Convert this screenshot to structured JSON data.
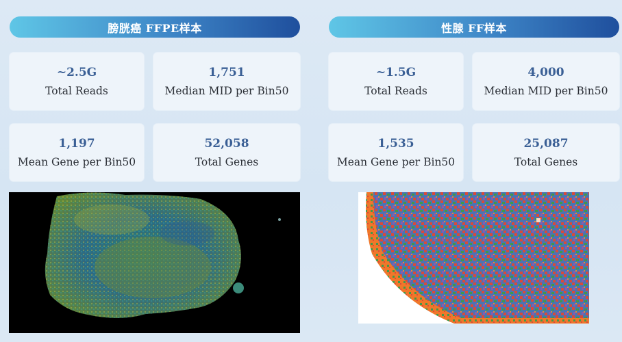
{
  "panels": [
    {
      "title": "膀胱癌 FFPE样本",
      "stats": [
        {
          "value": "~2.5G",
          "label": "Total Reads"
        },
        {
          "value": "1,751",
          "label": "Median MID per Bin50"
        },
        {
          "value": "1,197",
          "label": "Mean Gene per Bin50"
        },
        {
          "value": "52,058",
          "label": "Total Genes"
        }
      ]
    },
    {
      "title": "性腺 FF样本",
      "stats": [
        {
          "value": "~1.5G",
          "label": "Total Reads"
        },
        {
          "value": "4,000",
          "label": "Median MID per Bin50"
        },
        {
          "value": "1,535",
          "label": "Mean Gene per Bin50"
        },
        {
          "value": "25,087",
          "label": "Total Genes"
        }
      ]
    }
  ],
  "colors": {
    "value_text": "#3a5f95",
    "pill_start": "#5fc6e6",
    "pill_end": "#1f4f9d",
    "card_bg": "#eef4fa"
  }
}
